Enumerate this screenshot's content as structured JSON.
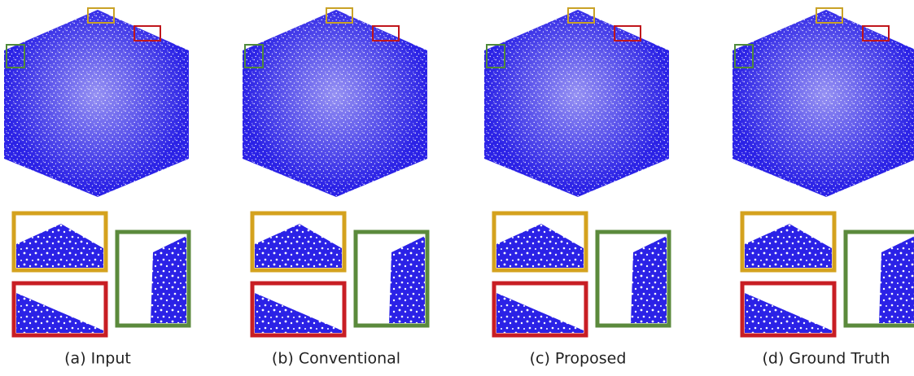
{
  "panels": [
    {
      "caption": "(a) Input"
    },
    {
      "caption": "(b) Conventional"
    },
    {
      "caption": "(c) Proposed"
    },
    {
      "caption": "(d) Ground Truth"
    }
  ]
}
